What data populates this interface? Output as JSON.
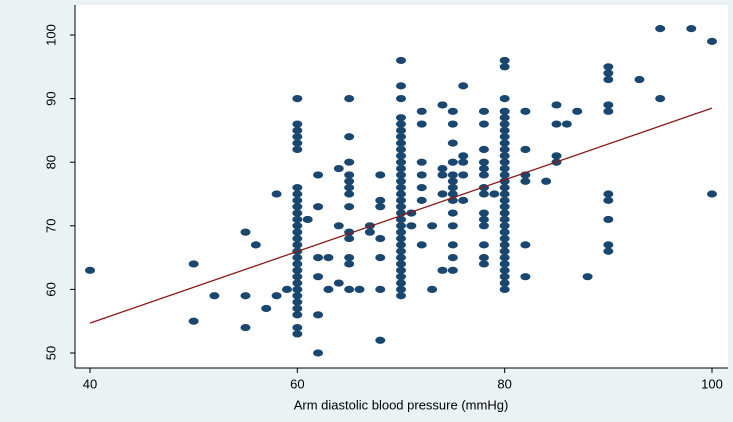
{
  "chart_data": {
    "type": "scatter",
    "xlabel": "Arm diastolic blood pressure (mmHg)",
    "xlim": [
      40,
      100
    ],
    "xticks": [
      40,
      60,
      80,
      100
    ],
    "ylim": [
      50,
      101
    ],
    "yticks": [
      50,
      60,
      70,
      80,
      90,
      100
    ],
    "grid": false,
    "color": "#1a476f",
    "x": [
      40,
      50,
      50,
      52,
      55,
      55,
      55,
      56,
      57,
      58,
      58,
      59,
      60,
      60,
      60,
      60,
      60,
      60,
      60,
      60,
      60,
      60,
      60,
      60,
      60,
      60,
      60,
      60,
      60,
      60,
      60,
      60,
      60,
      60,
      60,
      60,
      60,
      60,
      60,
      60,
      60,
      61,
      62,
      62,
      62,
      62,
      62,
      62,
      63,
      63,
      64,
      64,
      64,
      65,
      65,
      65,
      65,
      65,
      65,
      65,
      65,
      65,
      65,
      65,
      65,
      65,
      66,
      67,
      67,
      68,
      68,
      68,
      68,
      68,
      68,
      68,
      70,
      70,
      70,
      70,
      70,
      70,
      70,
      70,
      70,
      70,
      70,
      70,
      70,
      70,
      70,
      70,
      70,
      70,
      70,
      70,
      70,
      70,
      70,
      70,
      70,
      70,
      70,
      70,
      70,
      70,
      70,
      70,
      71,
      71,
      72,
      72,
      72,
      72,
      72,
      72,
      72,
      73,
      73,
      74,
      74,
      74,
      74,
      74,
      75,
      75,
      75,
      75,
      75,
      75,
      75,
      75,
      75,
      75,
      75,
      75,
      75,
      75,
      76,
      76,
      76,
      76,
      76,
      78,
      78,
      78,
      78,
      78,
      78,
      78,
      78,
      78,
      78,
      78,
      78,
      78,
      78,
      79,
      80,
      80,
      80,
      80,
      80,
      80,
      80,
      80,
      80,
      80,
      80,
      80,
      80,
      80,
      80,
      80,
      80,
      80,
      80,
      80,
      80,
      80,
      80,
      80,
      80,
      80,
      80,
      80,
      80,
      80,
      80,
      80,
      82,
      82,
      82,
      82,
      82,
      82,
      84,
      85,
      85,
      85,
      85,
      86,
      87,
      88,
      90,
      90,
      90,
      90,
      90,
      90,
      90,
      90,
      90,
      90,
      93,
      95,
      95,
      98,
      100,
      100
    ],
    "values": [
      63,
      64,
      55,
      59,
      69,
      59,
      54,
      67,
      57,
      75,
      59,
      60,
      90,
      86,
      85,
      84,
      83,
      82,
      76,
      75,
      74,
      73,
      72,
      71,
      70,
      69,
      68,
      67,
      66,
      65,
      64,
      63,
      62,
      61,
      60,
      59,
      58,
      57,
      56,
      54,
      53,
      71,
      78,
      73,
      65,
      62,
      56,
      50,
      65,
      60,
      79,
      70,
      61,
      90,
      84,
      80,
      78,
      77,
      76,
      75,
      73,
      69,
      68,
      65,
      64,
      60,
      60,
      70,
      69,
      78,
      74,
      73,
      68,
      65,
      60,
      52,
      96,
      92,
      90,
      87,
      86,
      85,
      84,
      83,
      82,
      81,
      80,
      79,
      78,
      77,
      76,
      75,
      74,
      73,
      72,
      71,
      70,
      69,
      68,
      67,
      66,
      65,
      64,
      63,
      62,
      61,
      60,
      59,
      72,
      70,
      88,
      86,
      80,
      78,
      76,
      74,
      67,
      70,
      60,
      89,
      79,
      78,
      75,
      63,
      88,
      86,
      83,
      80,
      78,
      77,
      76,
      75,
      74,
      72,
      70,
      67,
      65,
      63,
      92,
      81,
      80,
      78,
      74,
      88,
      86,
      82,
      80,
      79,
      78,
      76,
      75,
      72,
      71,
      70,
      67,
      65,
      64,
      75,
      96,
      95,
      90,
      88,
      87,
      86,
      85,
      84,
      83,
      82,
      81,
      80,
      79,
      78,
      77,
      76,
      75,
      74,
      73,
      72,
      71,
      70,
      69,
      68,
      67,
      66,
      65,
      64,
      63,
      62,
      61,
      60,
      88,
      82,
      78,
      77,
      67,
      62,
      77,
      89,
      86,
      81,
      80,
      86,
      88,
      62,
      95,
      94,
      93,
      89,
      88,
      75,
      74,
      71,
      67,
      66,
      93,
      101,
      90,
      101,
      99,
      75
    ],
    "line": {
      "x": [
        40,
        100
      ],
      "values": [
        54.7,
        88.5
      ],
      "color": "#8b1a1a"
    }
  }
}
